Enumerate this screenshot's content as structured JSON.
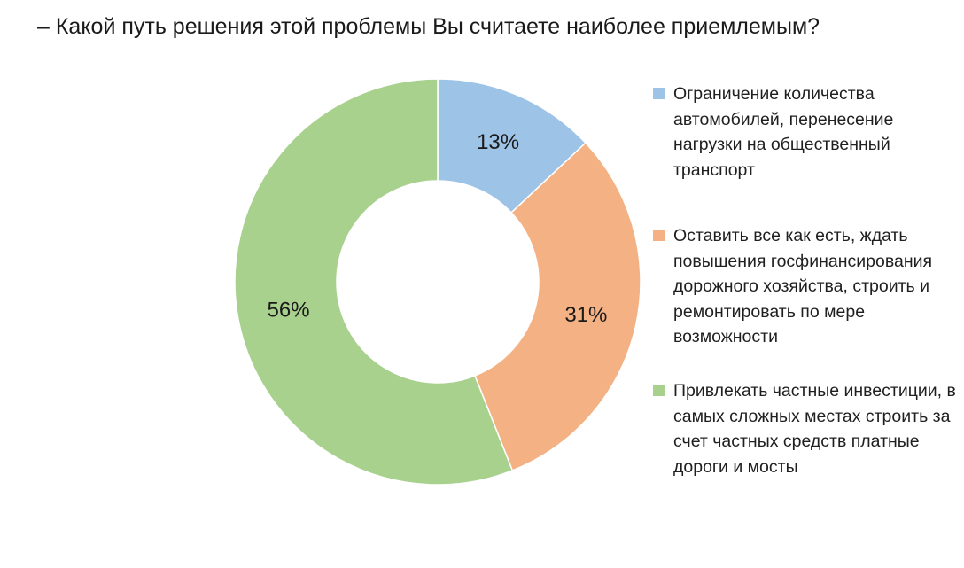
{
  "title": "– Какой путь решения этой проблемы Вы считаете наиболее приемлемым?",
  "chart_data": {
    "type": "pie",
    "donut": true,
    "title": "– Какой путь решения этой проблемы Вы считаете наиболее приемлемым?",
    "legend_position": "right",
    "slices": [
      {
        "label": "Ограничение количества автомобилей, перенесение нагрузки на общественный транспорт",
        "value": 13,
        "display": "13%",
        "color": "#9dc3e6"
      },
      {
        "label": "Оставить все как есть, ждать повышения госфинансирования дорожного хозяйства, строить и ремонтировать по мере возможности",
        "value": 31,
        "display": "31%",
        "color": "#f4b183"
      },
      {
        "label": "Привлекать частные инвестиции, в самых сложных местах строить за счет частных средств платные дороги и мосты",
        "value": 56,
        "display": "56%",
        "color": "#a9d18e"
      }
    ]
  }
}
